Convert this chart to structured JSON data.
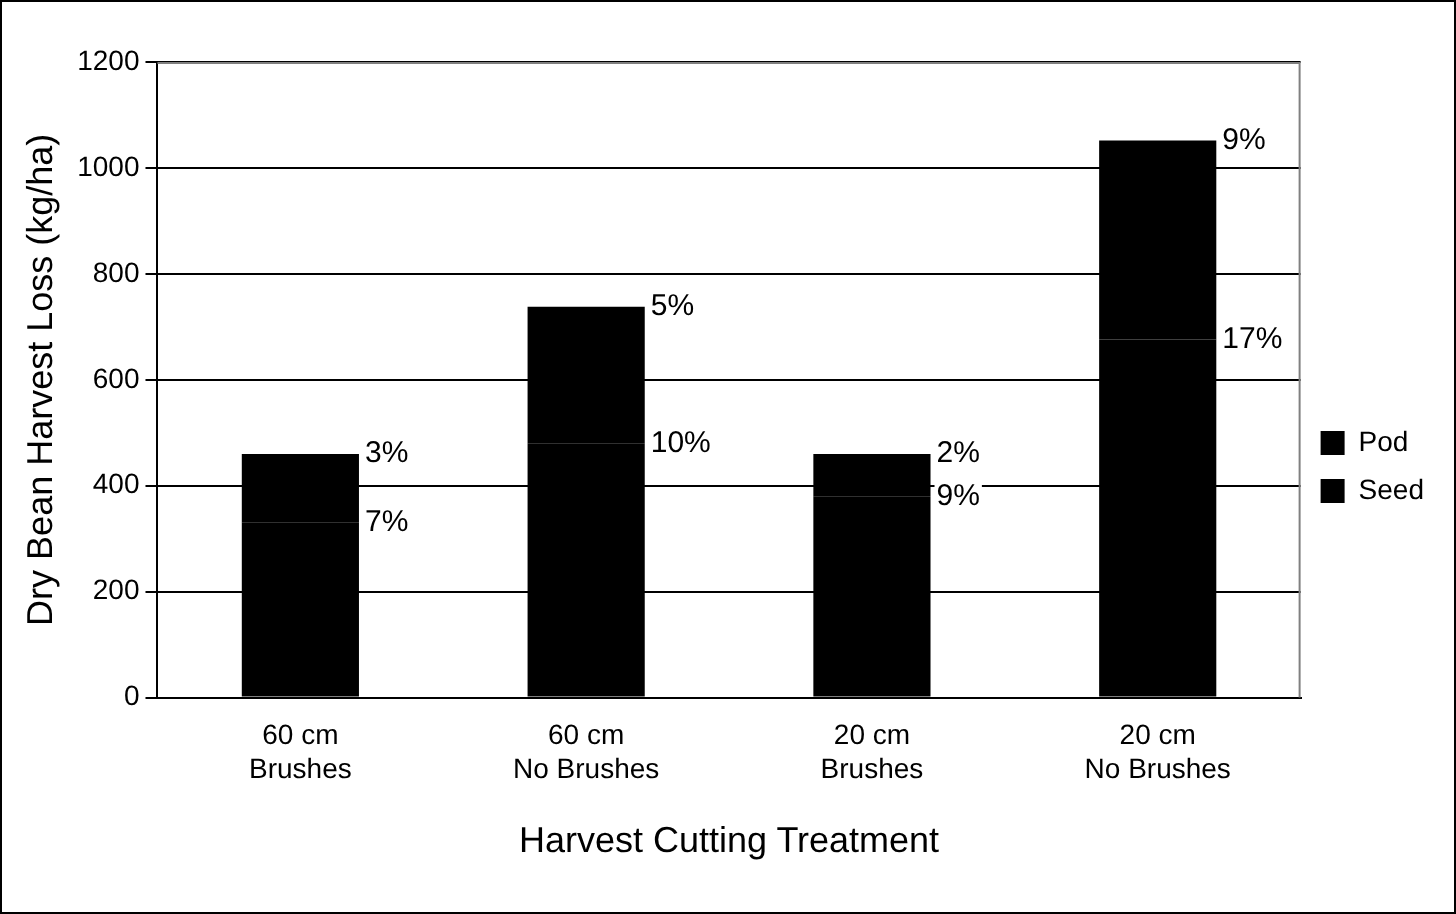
{
  "chart_data": {
    "type": "bar",
    "stacked": true,
    "xlabel": "Harvest Cutting Treatment",
    "ylabel": "Dry Bean Harvest Loss (kg/ha)",
    "categories": [
      "60 cm Brushes",
      "60 cm No Brushes",
      "20 cm Brushes",
      "20 cm No Brushes"
    ],
    "series": [
      {
        "name": "Seed",
        "color": "#000000",
        "values": [
          330,
          480,
          380,
          676
        ]
      },
      {
        "name": "Pod",
        "color": "#000000",
        "values": [
          130,
          258,
          80,
          376
        ]
      }
    ],
    "annotations": [
      {
        "text": "3%",
        "x": "60 cm Brushes",
        "y": 460
      },
      {
        "text": "7%",
        "x": "60 cm Brushes",
        "y": 330
      },
      {
        "text": "5%",
        "x": "60 cm No Brushes",
        "y": 738
      },
      {
        "text": "10%",
        "x": "60 cm No Brushes",
        "y": 480
      },
      {
        "text": "2%",
        "x": "20 cm Brushes",
        "y": 460
      },
      {
        "text": "9%",
        "x": "20 cm Brushes",
        "y": 380
      },
      {
        "text": "9%",
        "x": "20 cm No Brushes",
        "y": 1052
      },
      {
        "text": "17%",
        "x": "20 cm No Brushes",
        "y": 676
      }
    ],
    "ylim": [
      0,
      1200
    ],
    "yticks": [
      0,
      200,
      400,
      600,
      800,
      1000,
      1200
    ],
    "grid": "y",
    "legend": "right"
  }
}
